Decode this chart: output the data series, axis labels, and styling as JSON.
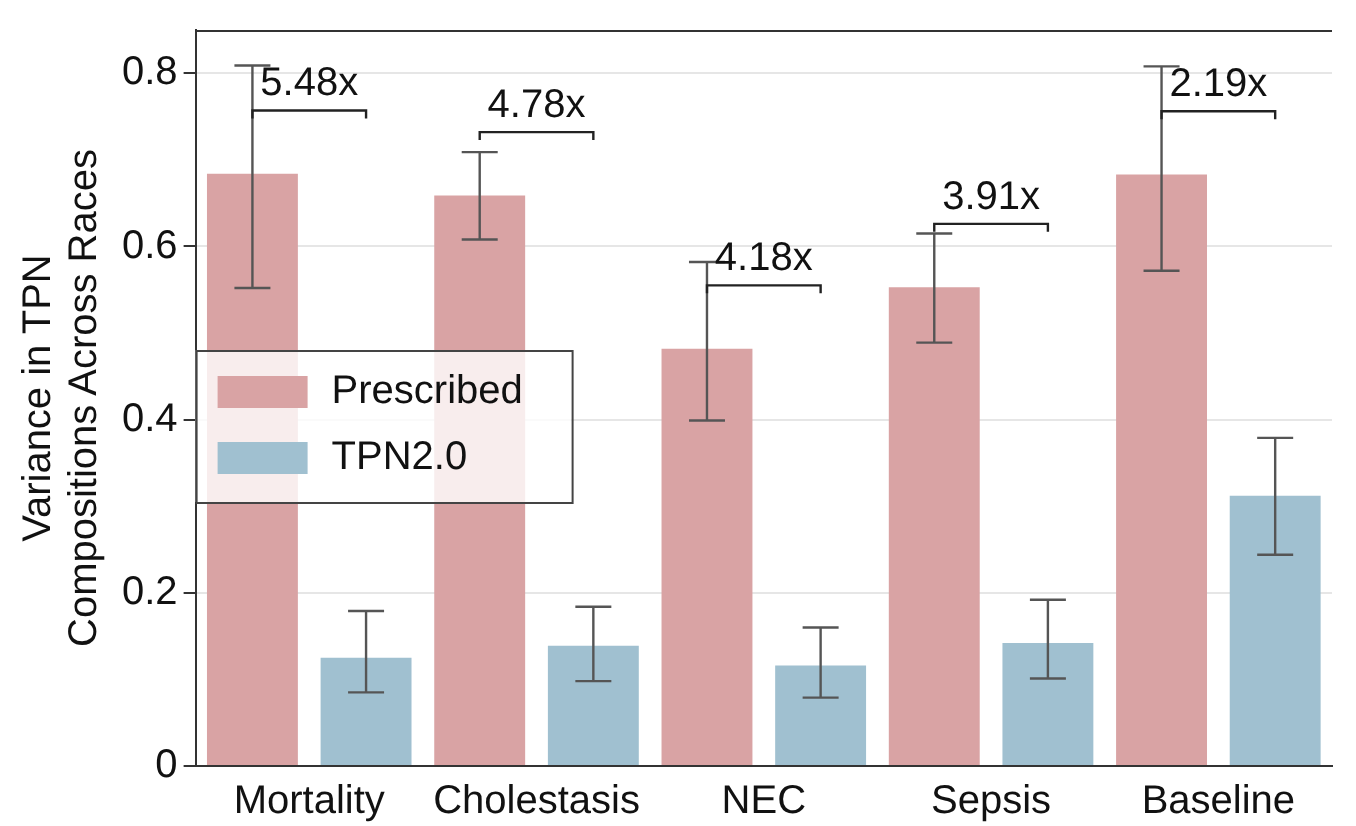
{
  "chart_data": {
    "type": "bar",
    "ylabel": "Variance in TPN\nCompositions Across Races",
    "categories": [
      "Mortality",
      "Cholestasis",
      "NEC",
      "Sepsis",
      "Baseline"
    ],
    "series": [
      {
        "name": "Prescribed",
        "color": "#d9a3a4",
        "values": [
          0.684,
          0.659,
          0.482,
          0.553,
          0.683
        ],
        "errors": [
          [
            0.552,
            0.809
          ],
          [
            0.608,
            0.709
          ],
          [
            0.399,
            0.582
          ],
          [
            0.489,
            0.615
          ],
          [
            0.572,
            0.808
          ]
        ]
      },
      {
        "name": "TPN2.0",
        "color": "#a0c0d0",
        "values": [
          0.125,
          0.139,
          0.116,
          0.142,
          0.312
        ],
        "errors": [
          [
            0.085,
            0.179
          ],
          [
            0.098,
            0.184
          ],
          [
            0.079,
            0.16
          ],
          [
            0.101,
            0.192
          ],
          [
            0.244,
            0.379
          ]
        ]
      }
    ],
    "ylim": [
      0,
      0.85
    ],
    "yticks": [
      0,
      0.2,
      0.4,
      0.6,
      0.8
    ],
    "grid": "y",
    "legend": "left",
    "annotations": [
      "5.48x",
      "4.78x",
      "4.18x",
      "3.91x",
      "2.19x"
    ]
  }
}
